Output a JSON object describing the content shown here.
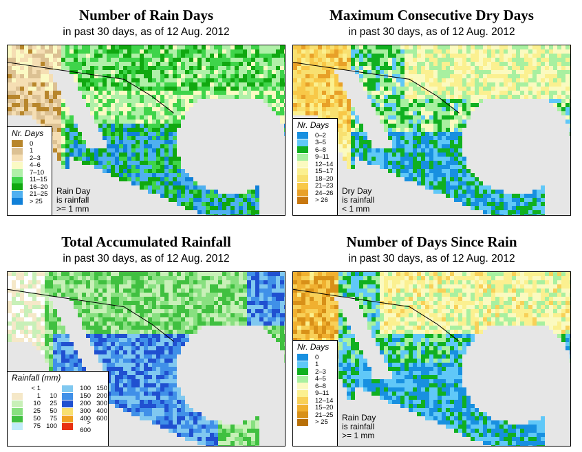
{
  "panels": [
    {
      "id": "rain-days",
      "title": "Number of Rain Days",
      "subtitle": "in past 30 days, as of  12 Aug. 2012",
      "legend_title": "Nr. Days",
      "legend": [
        {
          "label": "0",
          "color": "#b8862b"
        },
        {
          "label": "1",
          "color": "#dcc193"
        },
        {
          "label": "2–3",
          "color": "#f5deb3"
        },
        {
          "label": "4–6",
          "color": "#fbfac4"
        },
        {
          "label": "7–10",
          "color": "#b0f0a8"
        },
        {
          "label": "11–15",
          "color": "#3fd44a"
        },
        {
          "label": "16–20",
          "color": "#10a810"
        },
        {
          "label": "21–25",
          "color": "#4fb0f0"
        },
        {
          "label": "> 25",
          "color": "#1080d8"
        }
      ],
      "note": [
        "Rain Day",
        "is rainfall",
        ">= 1 mm"
      ]
    },
    {
      "id": "dry-days",
      "title": "Maximum Consecutive Dry Days",
      "subtitle": "in past 30 days, as of  12 Aug. 2012",
      "legend_title": "Nr. Days",
      "legend": [
        {
          "label": "0–2",
          "color": "#1890e0"
        },
        {
          "label": "3–5",
          "color": "#60c8f8"
        },
        {
          "label": "6–8",
          "color": "#10b020"
        },
        {
          "label": "9–11",
          "color": "#a8f0a0"
        },
        {
          "label": "12–14",
          "color": "#fbfac0"
        },
        {
          "label": "15–17",
          "color": "#fbf090"
        },
        {
          "label": "18–20",
          "color": "#f8e070"
        },
        {
          "label": "21–23",
          "color": "#f8c848"
        },
        {
          "label": "24–26",
          "color": "#e8a028"
        },
        {
          "label": "> 26",
          "color": "#c87810"
        }
      ],
      "note": [
        "Dry Day",
        "is rainfall",
        "< 1 mm"
      ]
    },
    {
      "id": "rainfall",
      "title": "Total Accumulated Rainfall",
      "subtitle": "in past 30 days, as of  12 Aug. 2012",
      "legend_title": "Rainfall (mm)",
      "legend": [
        {
          "from": "< 1",
          "to": "",
          "color": "#ffffff"
        },
        {
          "from": "1",
          "to": "10",
          "color": "#f5e8c8"
        },
        {
          "from": "10",
          "to": "25",
          "color": "#c8f0b8"
        },
        {
          "from": "25",
          "to": "50",
          "color": "#88e080"
        },
        {
          "from": "50",
          "to": "75",
          "color": "#40c040"
        },
        {
          "from": "75",
          "to": "100",
          "color": "#c0ecf8"
        },
        {
          "from": "100",
          "to": "150",
          "color": "#80c8f0"
        },
        {
          "from": "150",
          "to": "200",
          "color": "#4090e8"
        },
        {
          "from": "200",
          "to": "300",
          "color": "#2050d0"
        },
        {
          "from": "300",
          "to": "400",
          "color": "#f8e070"
        },
        {
          "from": "400",
          "to": "600",
          "color": "#f0a020"
        },
        {
          "from": "> 600",
          "to": "",
          "color": "#e83010"
        }
      ]
    },
    {
      "id": "since-rain",
      "title": "Number of Days Since Rain",
      "subtitle": "in past 30 days, as of  12 Aug. 2012",
      "legend_title": "Nr. Days",
      "legend": [
        {
          "label": "0",
          "color": "#1890e0"
        },
        {
          "label": "1",
          "color": "#60c8f8"
        },
        {
          "label": "2–3",
          "color": "#10b020"
        },
        {
          "label": "4–5",
          "color": "#a8f0a0"
        },
        {
          "label": "6–8",
          "color": "#fbfac0"
        },
        {
          "label": "9–11",
          "color": "#fbf090"
        },
        {
          "label": "12–14",
          "color": "#f8d058"
        },
        {
          "label": "15–20",
          "color": "#f0b030"
        },
        {
          "label": "21–25",
          "color": "#d89018"
        },
        {
          "label": "> 25",
          "color": "#b87008"
        }
      ],
      "note": [
        "Rain Day",
        "is rainfall",
        ">= 1 mm"
      ]
    }
  ]
}
